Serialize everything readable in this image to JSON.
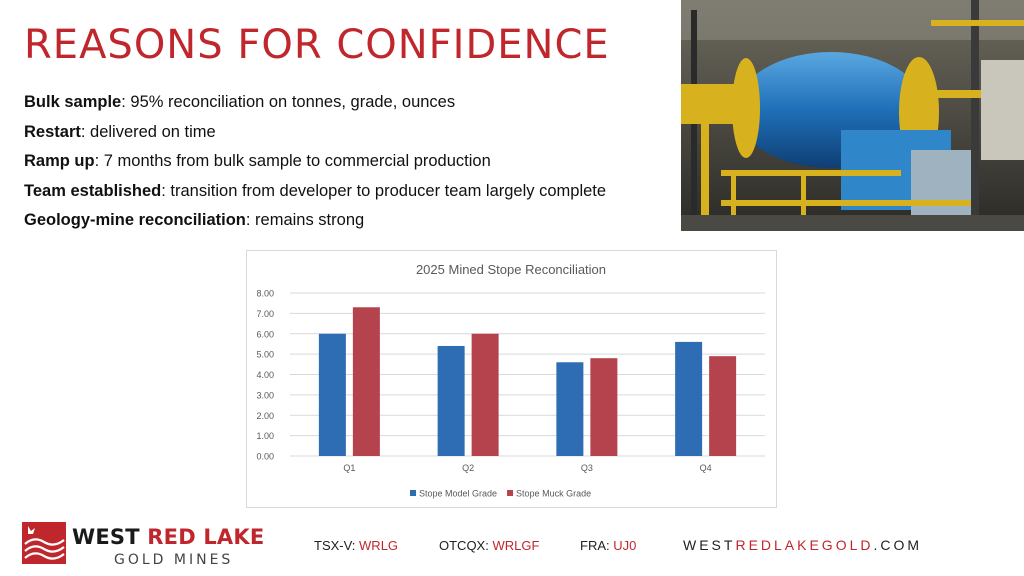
{
  "title": "REASONS FOR CONFIDENCE",
  "bullets": [
    {
      "bold": "Bulk sample",
      "text": ": 95% reconciliation on tonnes, grade, ounces"
    },
    {
      "bold": "Restart",
      "text": ": delivered on time"
    },
    {
      "bold": "Ramp up",
      "text": ": 7 months from bulk sample to commercial production"
    },
    {
      "bold": "Team established",
      "text": ": transition from developer to producer team largely complete"
    },
    {
      "bold": "Geology-mine reconciliation",
      "text": ": remains strong"
    }
  ],
  "chart_data": {
    "type": "bar",
    "title": "2025 Mined Stope Reconciliation",
    "categories": [
      "Q1",
      "Q2",
      "Q3",
      "Q4"
    ],
    "series": [
      {
        "name": "Stope Model Grade",
        "values": [
          6.0,
          5.4,
          4.6,
          5.6
        ],
        "color": "#2e6db4"
      },
      {
        "name": "Stope Muck Grade",
        "values": [
          7.3,
          6.0,
          4.8,
          4.9
        ],
        "color": "#b5434d"
      }
    ],
    "ylim": [
      0,
      8
    ],
    "yticks": [
      "0.00",
      "1.00",
      "2.00",
      "3.00",
      "4.00",
      "5.00",
      "6.00",
      "7.00",
      "8.00"
    ],
    "grid": true,
    "legend": "bottom"
  },
  "footer": {
    "logo_word1": "WEST",
    "logo_word2": "RED LAKE",
    "logo_sub": "GOLD MINES",
    "tickers": [
      {
        "label": "TSX-V: ",
        "code": "WRLG"
      },
      {
        "label": "OTCQX: ",
        "code": "WRLGF"
      },
      {
        "label": "FRA: ",
        "code": "UJ0"
      }
    ],
    "website_a": "WEST",
    "website_b": "REDLAKEGOLD",
    "website_c": ".COM"
  },
  "colors": {
    "brand_red": "#c0272d",
    "series_blue": "#2e6db4",
    "series_red": "#b5434d"
  },
  "photo_description_icon": "ball-mill-photo"
}
